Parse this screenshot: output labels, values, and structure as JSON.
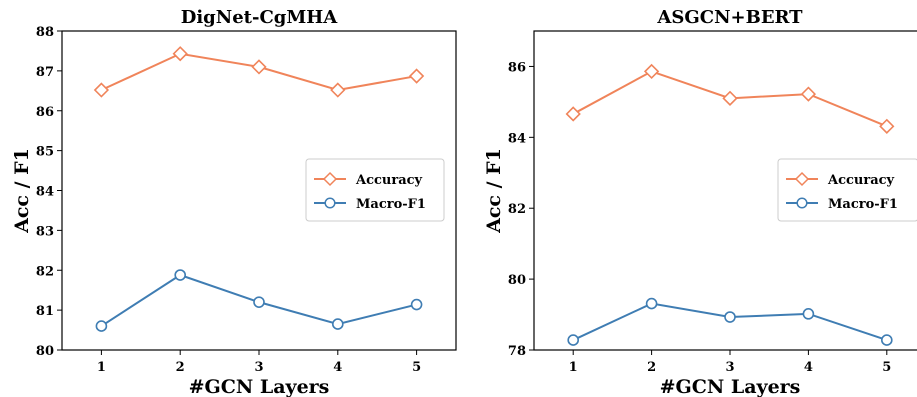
{
  "chart_data": [
    {
      "type": "line",
      "title": "DigNet-CgMHA",
      "xlabel": "#GCN Layers",
      "ylabel": "Acc / F1",
      "x": [
        1,
        2,
        3,
        4,
        5
      ],
      "xticks": [
        "1",
        "2",
        "3",
        "4",
        "5"
      ],
      "yticks": [
        "80",
        "81",
        "82",
        "83",
        "84",
        "85",
        "86",
        "87",
        "88"
      ],
      "ylim": [
        80,
        88
      ],
      "grid": false,
      "legend_position": "center-right",
      "series": [
        {
          "name": "Accuracy",
          "values": [
            86.52,
            87.43,
            87.1,
            86.52,
            86.87
          ],
          "color": "#F0845A",
          "marker": "diamond"
        },
        {
          "name": "Macro-F1",
          "values": [
            80.6,
            81.88,
            81.2,
            80.65,
            81.14
          ],
          "color": "#3F7DB3",
          "marker": "circle"
        }
      ]
    },
    {
      "type": "line",
      "title": "ASGCN+BERT",
      "xlabel": "#GCN Layers",
      "ylabel": "Acc / F1",
      "x": [
        1,
        2,
        3,
        4,
        5
      ],
      "xticks": [
        "1",
        "2",
        "3",
        "4",
        "5"
      ],
      "yticks": [
        "78",
        "80",
        "82",
        "84",
        "86"
      ],
      "ylim": [
        78,
        87
      ],
      "grid": false,
      "legend_position": "center-right",
      "series": [
        {
          "name": "Accuracy",
          "values": [
            84.66,
            85.86,
            85.1,
            85.22,
            84.31
          ],
          "color": "#F0845A",
          "marker": "diamond"
        },
        {
          "name": "Macro-F1",
          "values": [
            78.28,
            79.31,
            78.93,
            79.02,
            78.28
          ],
          "color": "#3F7DB3",
          "marker": "circle"
        }
      ]
    }
  ]
}
